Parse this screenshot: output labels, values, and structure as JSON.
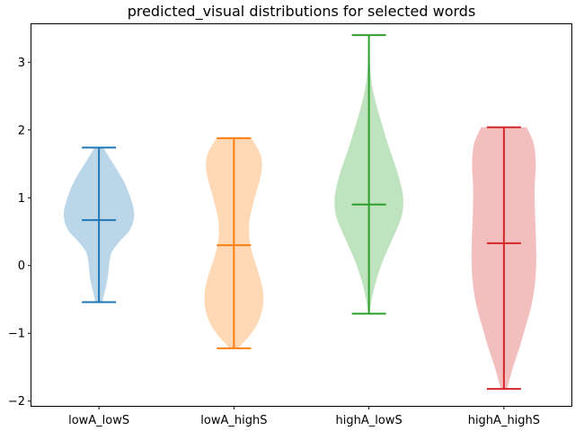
{
  "chart_data": {
    "type": "violin",
    "title": "predicted_visual distributions for selected words",
    "xlabel": "",
    "ylabel": "",
    "categories": [
      "lowA_lowS",
      "lowA_highS",
      "highA_lowS",
      "highA_highS"
    ],
    "colors": [
      "#1f77b4",
      "#ff7f0e",
      "#2ca02c",
      "#d62728"
    ],
    "ylim": [
      -2.07,
      3.56
    ],
    "yticks": [
      -2,
      -1,
      0,
      1,
      2,
      3
    ],
    "ytick_labels": [
      "−2",
      "−1",
      "0",
      "1",
      "2",
      "3"
    ],
    "grid": false,
    "series": [
      {
        "min": -0.54,
        "max": 1.74,
        "mean": 0.67,
        "density": [
          [
            -0.54,
            0.1
          ],
          [
            -0.4,
            0.16
          ],
          [
            -0.25,
            0.23
          ],
          [
            -0.1,
            0.27
          ],
          [
            0.05,
            0.3
          ],
          [
            0.2,
            0.37
          ],
          [
            0.35,
            0.58
          ],
          [
            0.5,
            0.85
          ],
          [
            0.65,
            0.98
          ],
          [
            0.8,
            1.0
          ],
          [
            0.95,
            0.93
          ],
          [
            1.1,
            0.83
          ],
          [
            1.25,
            0.7
          ],
          [
            1.4,
            0.53
          ],
          [
            1.55,
            0.35
          ],
          [
            1.74,
            0.12
          ]
        ]
      },
      {
        "min": -1.22,
        "max": 1.88,
        "mean": 0.3,
        "density": [
          [
            -1.22,
            0.12
          ],
          [
            -1.05,
            0.42
          ],
          [
            -0.85,
            0.68
          ],
          [
            -0.6,
            0.83
          ],
          [
            -0.35,
            0.82
          ],
          [
            -0.1,
            0.7
          ],
          [
            0.15,
            0.54
          ],
          [
            0.4,
            0.44
          ],
          [
            0.65,
            0.44
          ],
          [
            0.85,
            0.52
          ],
          [
            1.05,
            0.62
          ],
          [
            1.25,
            0.73
          ],
          [
            1.45,
            0.8
          ],
          [
            1.65,
            0.75
          ],
          [
            1.88,
            0.5
          ]
        ]
      },
      {
        "min": -0.71,
        "max": 3.4,
        "mean": 0.9,
        "density": [
          [
            -0.71,
            0.02
          ],
          [
            -0.5,
            0.08
          ],
          [
            -0.2,
            0.22
          ],
          [
            0.1,
            0.42
          ],
          [
            0.4,
            0.68
          ],
          [
            0.7,
            0.92
          ],
          [
            0.9,
            0.98
          ],
          [
            1.1,
            0.95
          ],
          [
            1.4,
            0.8
          ],
          [
            1.7,
            0.6
          ],
          [
            2.0,
            0.42
          ],
          [
            2.3,
            0.25
          ],
          [
            2.6,
            0.11
          ],
          [
            2.9,
            0.04
          ],
          [
            3.2,
            0.02
          ],
          [
            3.4,
            0.01
          ]
        ]
      },
      {
        "min": -1.82,
        "max": 2.04,
        "mean": 0.33,
        "density": [
          [
            -1.82,
            0.09
          ],
          [
            -1.5,
            0.26
          ],
          [
            -1.2,
            0.45
          ],
          [
            -0.9,
            0.62
          ],
          [
            -0.6,
            0.78
          ],
          [
            -0.3,
            0.88
          ],
          [
            0.0,
            0.92
          ],
          [
            0.3,
            0.92
          ],
          [
            0.6,
            0.9
          ],
          [
            0.9,
            0.88
          ],
          [
            1.2,
            0.88
          ],
          [
            1.5,
            0.91
          ],
          [
            1.8,
            0.85
          ],
          [
            2.04,
            0.65
          ]
        ]
      }
    ]
  }
}
